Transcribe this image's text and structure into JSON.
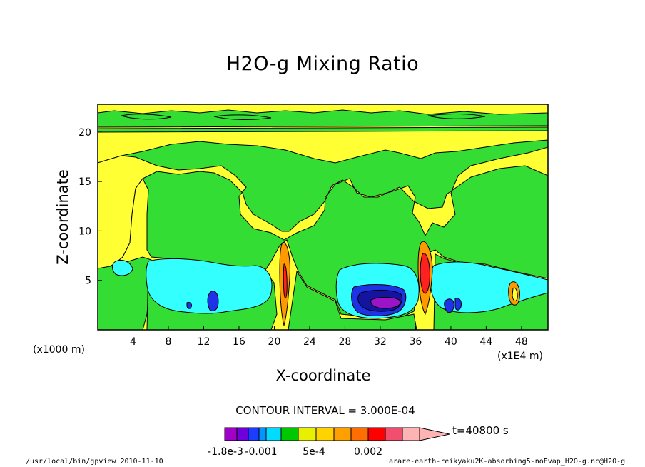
{
  "chart_data": {
    "type": "contour",
    "title": "H2O-g Mixing Ratio",
    "xlabel": "X-coordinate",
    "ylabel": "Z-coordinate",
    "x_units_left": "(x1000 m)",
    "x_units_right": "(x1E4 m)",
    "x_ticks": [
      "4",
      "8",
      "12",
      "16",
      "20",
      "24",
      "28",
      "32",
      "36",
      "40",
      "44",
      "48"
    ],
    "x_tick_values": [
      4,
      8,
      12,
      16,
      20,
      24,
      28,
      32,
      36,
      40,
      44,
      48
    ],
    "y_ticks": [
      "5",
      "10",
      "15",
      "20"
    ],
    "y_tick_values": [
      5,
      10,
      15,
      20
    ],
    "xlim": [
      0,
      51
    ],
    "ylim": [
      0,
      22.8
    ],
    "contour_interval_text": "CONTOUR INTERVAL = 3.000E-04",
    "time_text": "t=40800 s",
    "colorbar_labels": [
      "-1.8e-3",
      "-0.001",
      "5e-4",
      "0.002"
    ],
    "colorbar_colors": [
      "#a000c8",
      "#6e00dc",
      "#1e3cff",
      "#0096ff",
      "#00dcff",
      "#00c800",
      "#e6f000",
      "#ffd200",
      "#ffa000",
      "#ff6e00",
      "#ff0000",
      "#f0506e",
      "#ffb4b4"
    ],
    "palette": {
      "green": "#33dd33",
      "yellow": "#ffff33",
      "cyan": "#33ffff",
      "blue": "#1e32e6",
      "navy": "#1414a0",
      "purple": "#9b14c8",
      "orange": "#ff9900",
      "red": "#ff2020"
    }
  },
  "footer": {
    "left": "/usr/local/bin/gpview  2010-11-10",
    "right": "arare-earth-reikyaku2K-absorbing5-noEvap_H2O-g.nc@H2O-g"
  }
}
